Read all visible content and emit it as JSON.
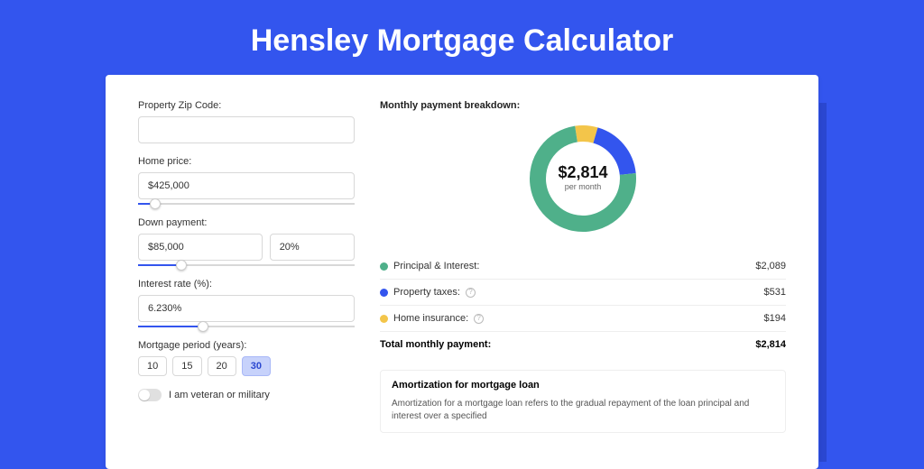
{
  "page": {
    "title": "Hensley Mortgage Calculator",
    "background_color": "#3355ee",
    "card_background": "#ffffff"
  },
  "form": {
    "zip": {
      "label": "Property Zip Code:",
      "value": ""
    },
    "home_price": {
      "label": "Home price:",
      "value": "$425,000",
      "slider_percent": 8
    },
    "down_payment": {
      "label": "Down payment:",
      "amount": "$85,000",
      "percent": "20%",
      "slider_percent": 20
    },
    "interest_rate": {
      "label": "Interest rate (%):",
      "value": "6.230%",
      "slider_percent": 30
    },
    "mortgage_period": {
      "label": "Mortgage period (years):",
      "options": [
        "10",
        "15",
        "20",
        "30"
      ],
      "selected": "30"
    },
    "veteran_toggle": {
      "label": "I am veteran or military",
      "on": false
    }
  },
  "breakdown": {
    "title": "Monthly payment breakdown:",
    "donut": {
      "type": "donut",
      "center_value": "$2,814",
      "center_label": "per month",
      "stroke_width": 18,
      "radius": 50,
      "slices": [
        {
          "key": "principal_interest",
          "value": 2089,
          "color": "#4fb08a"
        },
        {
          "key": "property_taxes",
          "value": 531,
          "color": "#3355ee"
        },
        {
          "key": "home_insurance",
          "value": 194,
          "color": "#f3c54a"
        }
      ]
    },
    "legend": [
      {
        "key": "principal_interest",
        "label": "Principal & Interest:",
        "amount": "$2,089",
        "color": "#4fb08a",
        "info": false
      },
      {
        "key": "property_taxes",
        "label": "Property taxes:",
        "amount": "$531",
        "color": "#3355ee",
        "info": true
      },
      {
        "key": "home_insurance",
        "label": "Home insurance:",
        "amount": "$194",
        "color": "#f3c54a",
        "info": true
      }
    ],
    "total": {
      "label": "Total monthly payment:",
      "amount": "$2,814"
    }
  },
  "amortization": {
    "title": "Amortization for mortgage loan",
    "text": "Amortization for a mortgage loan refers to the gradual repayment of the loan principal and interest over a specified"
  }
}
